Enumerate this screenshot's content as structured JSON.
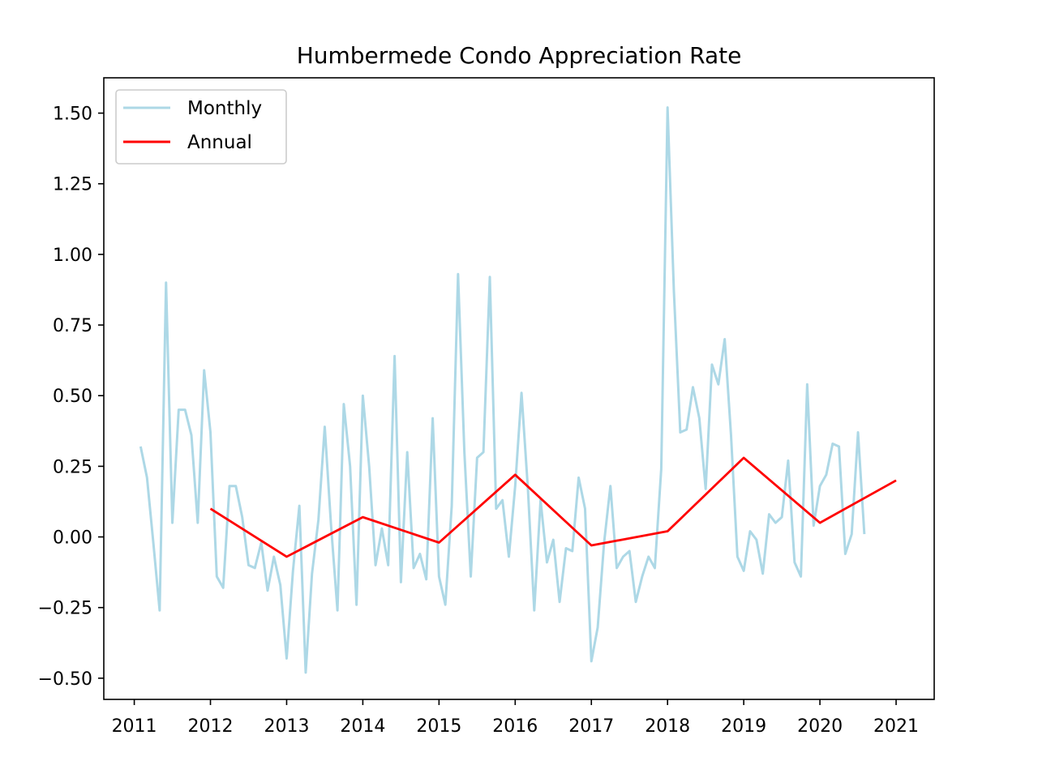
{
  "chart_data": {
    "type": "line",
    "title": "Humbermede Condo Appreciation Rate",
    "xlabel": "",
    "ylabel": "",
    "xlim": [
      2010.6,
      2021.5
    ],
    "ylim": [
      -0.575,
      1.625
    ],
    "x_ticks": [
      2011,
      2012,
      2013,
      2014,
      2015,
      2016,
      2017,
      2018,
      2019,
      2020,
      2021
    ],
    "x_tick_labels": [
      "2011",
      "2012",
      "2013",
      "2014",
      "2015",
      "2016",
      "2017",
      "2018",
      "2019",
      "2020",
      "2021"
    ],
    "y_ticks": [
      -0.5,
      -0.25,
      0,
      0.25,
      0.5,
      0.75,
      1.0,
      1.25,
      1.5
    ],
    "y_tick_labels": [
      "−0.50",
      "−0.25",
      "0.00",
      "0.25",
      "0.50",
      "0.75",
      "1.00",
      "1.25",
      "1.50"
    ],
    "grid": false,
    "legend_position": "top-left",
    "series": [
      {
        "name": "Monthly",
        "color": "#add8e6",
        "points": [
          [
            2011.083,
            0.32
          ],
          [
            2011.167,
            0.21
          ],
          [
            2011.25,
            -0.02
          ],
          [
            2011.333,
            -0.26
          ],
          [
            2011.417,
            0.9
          ],
          [
            2011.5,
            0.05
          ],
          [
            2011.583,
            0.45
          ],
          [
            2011.667,
            0.45
          ],
          [
            2011.75,
            0.36
          ],
          [
            2011.833,
            0.05
          ],
          [
            2011.917,
            0.59
          ],
          [
            2012.0,
            0.37
          ],
          [
            2012.083,
            -0.14
          ],
          [
            2012.167,
            -0.18
          ],
          [
            2012.25,
            0.18
          ],
          [
            2012.333,
            0.18
          ],
          [
            2012.417,
            0.07
          ],
          [
            2012.5,
            -0.1
          ],
          [
            2012.583,
            -0.11
          ],
          [
            2012.667,
            -0.02
          ],
          [
            2012.75,
            -0.19
          ],
          [
            2012.833,
            -0.07
          ],
          [
            2012.917,
            -0.17
          ],
          [
            2013.0,
            -0.43
          ],
          [
            2013.083,
            -0.12
          ],
          [
            2013.167,
            0.11
          ],
          [
            2013.25,
            -0.48
          ],
          [
            2013.333,
            -0.13
          ],
          [
            2013.417,
            0.06
          ],
          [
            2013.5,
            0.39
          ],
          [
            2013.583,
            0.04
          ],
          [
            2013.667,
            -0.26
          ],
          [
            2013.75,
            0.47
          ],
          [
            2013.833,
            0.25
          ],
          [
            2013.917,
            -0.24
          ],
          [
            2014.0,
            0.5
          ],
          [
            2014.083,
            0.25
          ],
          [
            2014.167,
            -0.1
          ],
          [
            2014.25,
            0.03
          ],
          [
            2014.333,
            -0.1
          ],
          [
            2014.417,
            0.64
          ],
          [
            2014.5,
            -0.16
          ],
          [
            2014.583,
            0.3
          ],
          [
            2014.667,
            -0.11
          ],
          [
            2014.75,
            -0.06
          ],
          [
            2014.833,
            -0.15
          ],
          [
            2014.917,
            0.42
          ],
          [
            2015.0,
            -0.14
          ],
          [
            2015.083,
            -0.24
          ],
          [
            2015.167,
            0.11
          ],
          [
            2015.25,
            0.93
          ],
          [
            2015.333,
            0.3
          ],
          [
            2015.417,
            -0.14
          ],
          [
            2015.5,
            0.28
          ],
          [
            2015.583,
            0.3
          ],
          [
            2015.667,
            0.92
          ],
          [
            2015.75,
            0.1
          ],
          [
            2015.833,
            0.13
          ],
          [
            2015.917,
            -0.07
          ],
          [
            2016.0,
            0.18
          ],
          [
            2016.083,
            0.51
          ],
          [
            2016.167,
            0.17
          ],
          [
            2016.25,
            -0.26
          ],
          [
            2016.333,
            0.13
          ],
          [
            2016.417,
            -0.09
          ],
          [
            2016.5,
            -0.01
          ],
          [
            2016.583,
            -0.23
          ],
          [
            2016.667,
            -0.04
          ],
          [
            2016.75,
            -0.05
          ],
          [
            2016.833,
            0.21
          ],
          [
            2016.917,
            0.1
          ],
          [
            2017.0,
            -0.44
          ],
          [
            2017.083,
            -0.32
          ],
          [
            2017.167,
            -0.02
          ],
          [
            2017.25,
            0.18
          ],
          [
            2017.333,
            -0.11
          ],
          [
            2017.417,
            -0.07
          ],
          [
            2017.5,
            -0.05
          ],
          [
            2017.583,
            -0.23
          ],
          [
            2017.667,
            -0.14
          ],
          [
            2017.75,
            -0.07
          ],
          [
            2017.833,
            -0.11
          ],
          [
            2017.917,
            0.24
          ],
          [
            2018.0,
            1.52
          ],
          [
            2018.083,
            0.87
          ],
          [
            2018.167,
            0.37
          ],
          [
            2018.25,
            0.38
          ],
          [
            2018.333,
            0.53
          ],
          [
            2018.417,
            0.42
          ],
          [
            2018.5,
            0.17
          ],
          [
            2018.583,
            0.61
          ],
          [
            2018.667,
            0.54
          ],
          [
            2018.75,
            0.7
          ],
          [
            2018.833,
            0.36
          ],
          [
            2018.917,
            -0.07
          ],
          [
            2019.0,
            -0.12
          ],
          [
            2019.083,
            0.02
          ],
          [
            2019.167,
            -0.01
          ],
          [
            2019.25,
            -0.13
          ],
          [
            2019.333,
            0.08
          ],
          [
            2019.417,
            0.05
          ],
          [
            2019.5,
            0.07
          ],
          [
            2019.583,
            0.27
          ],
          [
            2019.667,
            -0.09
          ],
          [
            2019.75,
            -0.14
          ],
          [
            2019.833,
            0.54
          ],
          [
            2019.917,
            0.04
          ],
          [
            2020.0,
            0.18
          ],
          [
            2020.083,
            0.22
          ],
          [
            2020.167,
            0.33
          ],
          [
            2020.25,
            0.32
          ],
          [
            2020.333,
            -0.06
          ],
          [
            2020.417,
            0.01
          ],
          [
            2020.5,
            0.37
          ],
          [
            2020.583,
            0.01
          ]
        ]
      },
      {
        "name": "Annual",
        "color": "#ff0000",
        "points": [
          [
            2012,
            0.1
          ],
          [
            2013,
            -0.07
          ],
          [
            2014,
            0.07
          ],
          [
            2015,
            -0.02
          ],
          [
            2016,
            0.22
          ],
          [
            2017,
            -0.03
          ],
          [
            2018,
            0.02
          ],
          [
            2019,
            0.28
          ],
          [
            2020,
            0.05
          ],
          [
            2021,
            0.2
          ]
        ]
      }
    ]
  }
}
